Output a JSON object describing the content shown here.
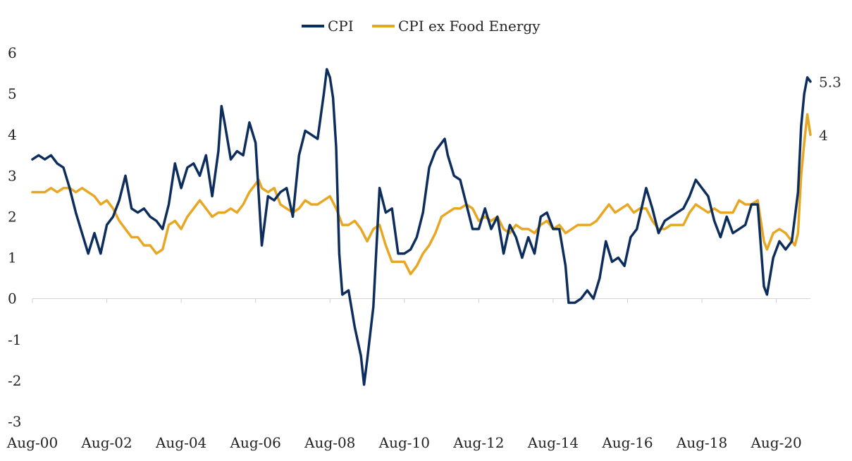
{
  "chart_data": {
    "type": "line",
    "title": "",
    "xlabel": "",
    "ylabel": "",
    "ylim": [
      -3,
      6
    ],
    "yticks": [
      "6",
      "5",
      "4",
      "3",
      "2",
      "1",
      "0",
      "-1",
      "-2",
      "-3"
    ],
    "xticks": [
      "Aug-00",
      "Aug-02",
      "Aug-04",
      "Aug-06",
      "Aug-08",
      "Aug-10",
      "Aug-12",
      "Aug-14",
      "Aug-16",
      "Aug-18",
      "Aug-20"
    ],
    "x_start": "2000-08",
    "x_end": "2021-07",
    "legend_position": "top-center",
    "grid": false,
    "series": [
      {
        "name": "CPI",
        "color": "#0d2e5c",
        "end_label": "5.3",
        "points": [
          [
            "2000-08",
            3.4
          ],
          [
            "2000-10",
            3.5
          ],
          [
            "2000-12",
            3.4
          ],
          [
            "2001-02",
            3.5
          ],
          [
            "2001-04",
            3.3
          ],
          [
            "2001-06",
            3.2
          ],
          [
            "2001-08",
            2.7
          ],
          [
            "2001-10",
            2.1
          ],
          [
            "2001-12",
            1.6
          ],
          [
            "2002-02",
            1.1
          ],
          [
            "2002-04",
            1.6
          ],
          [
            "2002-06",
            1.1
          ],
          [
            "2002-08",
            1.8
          ],
          [
            "2002-10",
            2.0
          ],
          [
            "2002-12",
            2.4
          ],
          [
            "2003-02",
            3.0
          ],
          [
            "2003-04",
            2.2
          ],
          [
            "2003-06",
            2.1
          ],
          [
            "2003-08",
            2.2
          ],
          [
            "2003-10",
            2.0
          ],
          [
            "2003-12",
            1.9
          ],
          [
            "2004-02",
            1.7
          ],
          [
            "2004-04",
            2.3
          ],
          [
            "2004-06",
            3.3
          ],
          [
            "2004-08",
            2.7
          ],
          [
            "2004-10",
            3.2
          ],
          [
            "2004-12",
            3.3
          ],
          [
            "2005-02",
            3.0
          ],
          [
            "2005-04",
            3.5
          ],
          [
            "2005-06",
            2.5
          ],
          [
            "2005-08",
            3.6
          ],
          [
            "2005-09",
            4.7
          ],
          [
            "2005-10",
            4.3
          ],
          [
            "2005-12",
            3.4
          ],
          [
            "2006-02",
            3.6
          ],
          [
            "2006-04",
            3.5
          ],
          [
            "2006-06",
            4.3
          ],
          [
            "2006-08",
            3.8
          ],
          [
            "2006-10",
            1.3
          ],
          [
            "2006-12",
            2.5
          ],
          [
            "2007-02",
            2.4
          ],
          [
            "2007-04",
            2.6
          ],
          [
            "2007-06",
            2.7
          ],
          [
            "2007-08",
            2.0
          ],
          [
            "2007-10",
            3.5
          ],
          [
            "2007-12",
            4.1
          ],
          [
            "2008-02",
            4.0
          ],
          [
            "2008-04",
            3.9
          ],
          [
            "2008-06",
            5.0
          ],
          [
            "2008-07",
            5.6
          ],
          [
            "2008-08",
            5.4
          ],
          [
            "2008-09",
            4.9
          ],
          [
            "2008-10",
            3.7
          ],
          [
            "2008-11",
            1.1
          ],
          [
            "2008-12",
            0.1
          ],
          [
            "2009-02",
            0.2
          ],
          [
            "2009-04",
            -0.7
          ],
          [
            "2009-06",
            -1.4
          ],
          [
            "2009-07",
            -2.1
          ],
          [
            "2009-08",
            -1.5
          ],
          [
            "2009-10",
            -0.2
          ],
          [
            "2009-12",
            2.7
          ],
          [
            "2010-02",
            2.1
          ],
          [
            "2010-04",
            2.2
          ],
          [
            "2010-06",
            1.1
          ],
          [
            "2010-08",
            1.1
          ],
          [
            "2010-10",
            1.2
          ],
          [
            "2010-12",
            1.5
          ],
          [
            "2011-02",
            2.1
          ],
          [
            "2011-04",
            3.2
          ],
          [
            "2011-06",
            3.6
          ],
          [
            "2011-08",
            3.8
          ],
          [
            "2011-09",
            3.9
          ],
          [
            "2011-10",
            3.5
          ],
          [
            "2011-12",
            3.0
          ],
          [
            "2012-02",
            2.9
          ],
          [
            "2012-04",
            2.3
          ],
          [
            "2012-06",
            1.7
          ],
          [
            "2012-08",
            1.7
          ],
          [
            "2012-10",
            2.2
          ],
          [
            "2012-12",
            1.7
          ],
          [
            "2013-02",
            2.0
          ],
          [
            "2013-04",
            1.1
          ],
          [
            "2013-06",
            1.8
          ],
          [
            "2013-08",
            1.5
          ],
          [
            "2013-10",
            1.0
          ],
          [
            "2013-12",
            1.5
          ],
          [
            "2014-02",
            1.1
          ],
          [
            "2014-04",
            2.0
          ],
          [
            "2014-06",
            2.1
          ],
          [
            "2014-08",
            1.7
          ],
          [
            "2014-10",
            1.7
          ],
          [
            "2014-12",
            0.8
          ],
          [
            "2015-01",
            -0.1
          ],
          [
            "2015-03",
            -0.1
          ],
          [
            "2015-05",
            0.0
          ],
          [
            "2015-07",
            0.2
          ],
          [
            "2015-09",
            0.0
          ],
          [
            "2015-11",
            0.5
          ],
          [
            "2016-01",
            1.4
          ],
          [
            "2016-03",
            0.9
          ],
          [
            "2016-05",
            1.0
          ],
          [
            "2016-07",
            0.8
          ],
          [
            "2016-09",
            1.5
          ],
          [
            "2016-11",
            1.7
          ],
          [
            "2017-02",
            2.7
          ],
          [
            "2017-04",
            2.2
          ],
          [
            "2017-06",
            1.6
          ],
          [
            "2017-08",
            1.9
          ],
          [
            "2017-10",
            2.0
          ],
          [
            "2017-12",
            2.1
          ],
          [
            "2018-02",
            2.2
          ],
          [
            "2018-04",
            2.5
          ],
          [
            "2018-06",
            2.9
          ],
          [
            "2018-08",
            2.7
          ],
          [
            "2018-10",
            2.5
          ],
          [
            "2018-12",
            1.9
          ],
          [
            "2019-02",
            1.5
          ],
          [
            "2019-04",
            2.0
          ],
          [
            "2019-06",
            1.6
          ],
          [
            "2019-08",
            1.7
          ],
          [
            "2019-10",
            1.8
          ],
          [
            "2019-12",
            2.3
          ],
          [
            "2020-02",
            2.3
          ],
          [
            "2020-04",
            0.3
          ],
          [
            "2020-05",
            0.1
          ],
          [
            "2020-07",
            1.0
          ],
          [
            "2020-09",
            1.4
          ],
          [
            "2020-11",
            1.2
          ],
          [
            "2021-01",
            1.4
          ],
          [
            "2021-03",
            2.6
          ],
          [
            "2021-04",
            4.2
          ],
          [
            "2021-05",
            5.0
          ],
          [
            "2021-06",
            5.4
          ],
          [
            "2021-07",
            5.3
          ]
        ]
      },
      {
        "name": "CPI ex Food Energy",
        "color": "#e8a723",
        "end_label": "4",
        "points": [
          [
            "2000-08",
            2.6
          ],
          [
            "2000-10",
            2.6
          ],
          [
            "2000-12",
            2.6
          ],
          [
            "2001-02",
            2.7
          ],
          [
            "2001-04",
            2.6
          ],
          [
            "2001-06",
            2.7
          ],
          [
            "2001-08",
            2.7
          ],
          [
            "2001-10",
            2.6
          ],
          [
            "2001-12",
            2.7
          ],
          [
            "2002-02",
            2.6
          ],
          [
            "2002-04",
            2.5
          ],
          [
            "2002-06",
            2.3
          ],
          [
            "2002-08",
            2.4
          ],
          [
            "2002-10",
            2.2
          ],
          [
            "2002-12",
            1.9
          ],
          [
            "2003-02",
            1.7
          ],
          [
            "2003-04",
            1.5
          ],
          [
            "2003-06",
            1.5
          ],
          [
            "2003-08",
            1.3
          ],
          [
            "2003-10",
            1.3
          ],
          [
            "2003-12",
            1.1
          ],
          [
            "2004-02",
            1.2
          ],
          [
            "2004-04",
            1.8
          ],
          [
            "2004-06",
            1.9
          ],
          [
            "2004-08",
            1.7
          ],
          [
            "2004-10",
            2.0
          ],
          [
            "2004-12",
            2.2
          ],
          [
            "2005-02",
            2.4
          ],
          [
            "2005-04",
            2.2
          ],
          [
            "2005-06",
            2.0
          ],
          [
            "2005-08",
            2.1
          ],
          [
            "2005-10",
            2.1
          ],
          [
            "2005-12",
            2.2
          ],
          [
            "2006-02",
            2.1
          ],
          [
            "2006-04",
            2.3
          ],
          [
            "2006-06",
            2.6
          ],
          [
            "2006-08",
            2.8
          ],
          [
            "2006-09",
            2.9
          ],
          [
            "2006-10",
            2.7
          ],
          [
            "2006-12",
            2.6
          ],
          [
            "2007-02",
            2.7
          ],
          [
            "2007-04",
            2.3
          ],
          [
            "2007-06",
            2.2
          ],
          [
            "2007-08",
            2.1
          ],
          [
            "2007-10",
            2.2
          ],
          [
            "2007-12",
            2.4
          ],
          [
            "2008-02",
            2.3
          ],
          [
            "2008-04",
            2.3
          ],
          [
            "2008-06",
            2.4
          ],
          [
            "2008-08",
            2.5
          ],
          [
            "2008-10",
            2.2
          ],
          [
            "2008-12",
            1.8
          ],
          [
            "2009-02",
            1.8
          ],
          [
            "2009-04",
            1.9
          ],
          [
            "2009-06",
            1.7
          ],
          [
            "2009-08",
            1.4
          ],
          [
            "2009-10",
            1.7
          ],
          [
            "2009-12",
            1.8
          ],
          [
            "2010-02",
            1.3
          ],
          [
            "2010-04",
            0.9
          ],
          [
            "2010-06",
            0.9
          ],
          [
            "2010-08",
            0.9
          ],
          [
            "2010-10",
            0.6
          ],
          [
            "2010-12",
            0.8
          ],
          [
            "2011-02",
            1.1
          ],
          [
            "2011-04",
            1.3
          ],
          [
            "2011-06",
            1.6
          ],
          [
            "2011-08",
            2.0
          ],
          [
            "2011-10",
            2.1
          ],
          [
            "2011-12",
            2.2
          ],
          [
            "2012-02",
            2.2
          ],
          [
            "2012-04",
            2.3
          ],
          [
            "2012-06",
            2.2
          ],
          [
            "2012-08",
            1.9
          ],
          [
            "2012-10",
            2.0
          ],
          [
            "2012-12",
            1.9
          ],
          [
            "2013-02",
            2.0
          ],
          [
            "2013-04",
            1.7
          ],
          [
            "2013-06",
            1.6
          ],
          [
            "2013-08",
            1.8
          ],
          [
            "2013-10",
            1.7
          ],
          [
            "2013-12",
            1.7
          ],
          [
            "2014-02",
            1.6
          ],
          [
            "2014-04",
            1.8
          ],
          [
            "2014-06",
            1.9
          ],
          [
            "2014-08",
            1.7
          ],
          [
            "2014-10",
            1.8
          ],
          [
            "2014-12",
            1.6
          ],
          [
            "2015-02",
            1.7
          ],
          [
            "2015-04",
            1.8
          ],
          [
            "2015-06",
            1.8
          ],
          [
            "2015-08",
            1.8
          ],
          [
            "2015-10",
            1.9
          ],
          [
            "2015-12",
            2.1
          ],
          [
            "2016-02",
            2.3
          ],
          [
            "2016-04",
            2.1
          ],
          [
            "2016-06",
            2.2
          ],
          [
            "2016-08",
            2.3
          ],
          [
            "2016-10",
            2.1
          ],
          [
            "2016-12",
            2.2
          ],
          [
            "2017-02",
            2.2
          ],
          [
            "2017-04",
            1.9
          ],
          [
            "2017-06",
            1.7
          ],
          [
            "2017-08",
            1.7
          ],
          [
            "2017-10",
            1.8
          ],
          [
            "2017-12",
            1.8
          ],
          [
            "2018-02",
            1.8
          ],
          [
            "2018-04",
            2.1
          ],
          [
            "2018-06",
            2.3
          ],
          [
            "2018-08",
            2.2
          ],
          [
            "2018-10",
            2.1
          ],
          [
            "2018-12",
            2.2
          ],
          [
            "2019-02",
            2.1
          ],
          [
            "2019-04",
            2.1
          ],
          [
            "2019-06",
            2.1
          ],
          [
            "2019-08",
            2.4
          ],
          [
            "2019-10",
            2.3
          ],
          [
            "2019-12",
            2.3
          ],
          [
            "2020-02",
            2.4
          ],
          [
            "2020-04",
            1.4
          ],
          [
            "2020-05",
            1.2
          ],
          [
            "2020-07",
            1.6
          ],
          [
            "2020-09",
            1.7
          ],
          [
            "2020-11",
            1.6
          ],
          [
            "2021-01",
            1.4
          ],
          [
            "2021-02",
            1.3
          ],
          [
            "2021-03",
            1.6
          ],
          [
            "2021-04",
            3.0
          ],
          [
            "2021-05",
            3.8
          ],
          [
            "2021-06",
            4.5
          ],
          [
            "2021-07",
            4.0
          ]
        ]
      }
    ]
  }
}
